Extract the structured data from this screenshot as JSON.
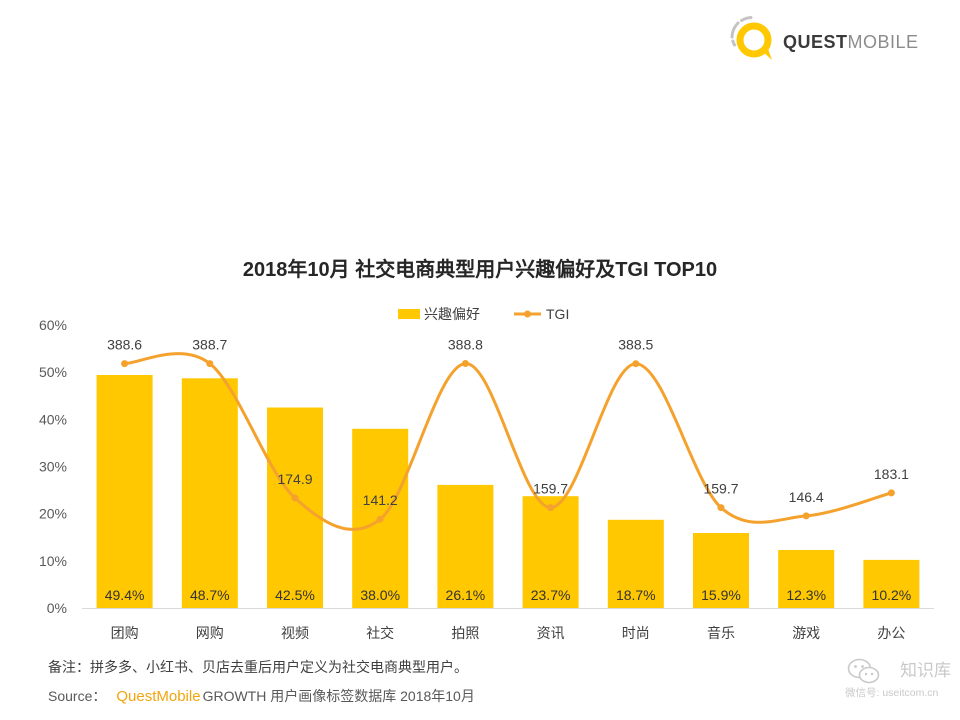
{
  "logo": {
    "bold": "QUEST",
    "light": "MOBILE"
  },
  "chart_data": {
    "type": "bar",
    "title": "2018年10月 社交电商典型用户兴趣偏好及TGI TOP10",
    "categories": [
      "团购",
      "网购",
      "视频",
      "社交",
      "拍照",
      "资讯",
      "时尚",
      "音乐",
      "游戏",
      "办公"
    ],
    "series": [
      {
        "name": "兴趣偏好",
        "type": "bar",
        "axis": "left",
        "color": "#FFC800",
        "values": [
          49.4,
          48.7,
          42.5,
          38.0,
          26.1,
          23.7,
          18.7,
          15.9,
          12.3,
          10.2
        ],
        "data_labels": [
          "49.4%",
          "48.7%",
          "42.5%",
          "38.0%",
          "26.1%",
          "23.7%",
          "18.7%",
          "15.9%",
          "12.3%",
          "10.2%"
        ]
      },
      {
        "name": "TGI",
        "type": "line",
        "axis": "right",
        "smooth": true,
        "markers": true,
        "color": "#F4A22D",
        "values": [
          388.6,
          388.7,
          174.9,
          141.2,
          388.8,
          159.7,
          388.5,
          159.7,
          146.4,
          183.1
        ]
      }
    ],
    "ylim": [
      0,
      60
    ],
    "y_ticks": [
      0,
      10,
      20,
      30,
      40,
      50,
      60
    ],
    "y_tick_labels": [
      "0%",
      "10%",
      "20%",
      "30%",
      "40%",
      "50%",
      "60%"
    ],
    "y2lim": [
      0,
      450
    ],
    "y2_axis_shown": false,
    "grid": false,
    "legend": "top-center"
  },
  "footnote": "备注：拼多多、小红书、贝店去重后用户定义为社交电商典型用户。",
  "source": {
    "label": "Source：",
    "brand": "QuestMobile",
    "text": "GROWTH 用户画像标签数据库 2018年10月"
  },
  "watermark": {
    "account": "知识库",
    "wechat_id": "微信号: useitcom.cn"
  }
}
